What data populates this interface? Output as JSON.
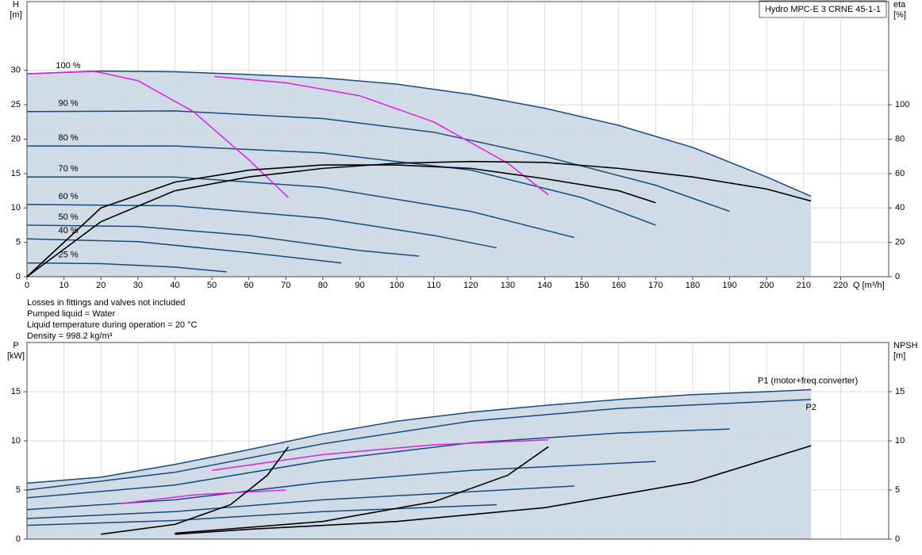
{
  "title": "Hydro MPC-E 3 CRNE 45-1-1",
  "notes": [
    "Losses in fittings and valves not included",
    "Pumped liquid = Water",
    "Liquid temperature during operation = 20 °C",
    "Density = 998.2 kg/m³"
  ],
  "chart_data": [
    {
      "type": "line",
      "ylabel": "H",
      "yunit": "[m]",
      "y2label": "eta",
      "y2unit": "[%]",
      "xlabel": "Q [m³/h]",
      "xlim": [
        0,
        233
      ],
      "xticks": [
        0,
        10,
        20,
        30,
        40,
        50,
        60,
        70,
        80,
        90,
        100,
        110,
        120,
        130,
        140,
        150,
        160,
        170,
        180,
        190,
        200,
        210,
        220
      ],
      "ylim": [
        0,
        40
      ],
      "yticks": [
        0,
        5,
        10,
        15,
        20,
        25,
        30
      ],
      "y2lim": [
        0,
        160
      ],
      "y2ticks": [
        0,
        20,
        40,
        60,
        80,
        100
      ],
      "grid": true,
      "xtick_labels": true,
      "series": [
        {
          "label": "100 %",
          "color": "#174a7c",
          "fill": "#cfdbe7",
          "x": [
            0,
            20,
            40,
            60,
            80,
            100,
            120,
            140,
            160,
            180,
            200,
            212
          ],
          "values": [
            29.5,
            29.9,
            29.8,
            29.4,
            28.9,
            28,
            26.5,
            24.5,
            22,
            18.8,
            14.5,
            11.7
          ]
        },
        {
          "label": "90 %",
          "color": "#174a7c",
          "x": [
            0,
            40,
            80,
            110,
            140,
            170,
            190
          ],
          "values": [
            24,
            24.1,
            23,
            21,
            17.5,
            13.3,
            9.5
          ]
        },
        {
          "label": "80 %",
          "color": "#174a7c",
          "x": [
            0,
            40,
            80,
            120,
            150,
            170
          ],
          "values": [
            19,
            19,
            18,
            15.5,
            11.5,
            7.5
          ]
        },
        {
          "label": "70 %",
          "color": "#174a7c",
          "x": [
            0,
            40,
            80,
            120,
            148
          ],
          "values": [
            14.5,
            14.5,
            13,
            9.5,
            5.7
          ]
        },
        {
          "label": "60 %",
          "color": "#174a7c",
          "x": [
            0,
            40,
            80,
            110,
            127
          ],
          "values": [
            10.5,
            10.3,
            8.5,
            6,
            4.2
          ]
        },
        {
          "label": "50 %",
          "color": "#174a7c",
          "x": [
            0,
            30,
            60,
            90,
            106
          ],
          "values": [
            7.5,
            7.3,
            6,
            3.8,
            3
          ]
        },
        {
          "label": "40 %",
          "color": "#174a7c",
          "x": [
            0,
            30,
            60,
            85
          ],
          "values": [
            5.5,
            5.1,
            3.5,
            2
          ]
        },
        {
          "label": "25 %",
          "color": "#174a7c",
          "x": [
            0,
            20,
            40,
            54
          ],
          "values": [
            2,
            1.9,
            1.4,
            0.7
          ]
        },
        {
          "color": "#e020e0",
          "x": [
            0,
            18,
            30,
            45,
            60,
            70.7
          ],
          "values": [
            29.5,
            29.9,
            28.5,
            24,
            17,
            11.5
          ]
        },
        {
          "color": "#e020e0",
          "x": [
            50.7,
            70,
            90,
            110,
            130,
            141
          ],
          "values": [
            29.1,
            28.2,
            26.3,
            22.5,
            16.5,
            11.9
          ]
        },
        {
          "color": "#000000",
          "axis": "y2",
          "x": [
            0,
            20,
            40,
            60,
            80,
            100,
            120,
            140,
            160,
            180,
            200,
            212
          ],
          "values": [
            0,
            32,
            50,
            58,
            63,
            66,
            67,
            66.5,
            63,
            58,
            51,
            44
          ]
        },
        {
          "color": "#000000",
          "axis": "y2",
          "x": [
            0,
            20,
            40,
            60,
            80,
            100,
            120,
            140,
            160,
            170
          ],
          "values": [
            0,
            40,
            55,
            62,
            65,
            65,
            63,
            57,
            50,
            43
          ]
        }
      ]
    },
    {
      "type": "line",
      "ylabel": "P",
      "yunit": "[kW]",
      "y2label": "NPSH",
      "y2unit": "[m]",
      "xlim": [
        0,
        233
      ],
      "xticks": [
        0,
        10,
        20,
        30,
        40,
        50,
        60,
        70,
        80,
        90,
        100,
        110,
        120,
        130,
        140,
        150,
        160,
        170,
        180,
        190,
        200,
        210,
        220
      ],
      "ylim": [
        0,
        20
      ],
      "yticks": [
        0,
        5,
        10,
        15
      ],
      "y2lim": [
        0,
        20
      ],
      "y2ticks": [
        0,
        5,
        10,
        15
      ],
      "grid": true,
      "xtick_labels": false,
      "series": [
        {
          "label": "P1 (motor+freq.converter)",
          "color": "#174a7c",
          "fill": "#cfdbe7",
          "x": [
            0,
            20,
            40,
            60,
            80,
            100,
            120,
            140,
            160,
            180,
            200,
            212
          ],
          "values": [
            5.7,
            6.3,
            7.6,
            9.1,
            10.7,
            12,
            12.9,
            13.6,
            14.2,
            14.7,
            15,
            15.2
          ]
        },
        {
          "label": "P2",
          "color": "#174a7c",
          "x": [
            0,
            40,
            80,
            120,
            160,
            212
          ],
          "values": [
            5,
            6.8,
            9.7,
            12,
            13.3,
            14.2
          ]
        },
        {
          "color": "#174a7c",
          "x": [
            0,
            40,
            80,
            120,
            160,
            190
          ],
          "values": [
            4.2,
            5.5,
            8,
            9.8,
            10.8,
            11.2
          ]
        },
        {
          "color": "#174a7c",
          "x": [
            0,
            40,
            80,
            120,
            170
          ],
          "values": [
            3,
            4,
            5.8,
            7,
            7.9
          ]
        },
        {
          "color": "#174a7c",
          "x": [
            0,
            40,
            80,
            148
          ],
          "values": [
            2.1,
            2.8,
            4,
            5.4
          ]
        },
        {
          "color": "#174a7c",
          "x": [
            0,
            40,
            80,
            127
          ],
          "values": [
            1.4,
            1.9,
            2.8,
            3.5
          ]
        },
        {
          "color": "#e020e0",
          "x": [
            50,
            80,
            110,
            141
          ],
          "values": [
            7,
            8.6,
            9.6,
            10.1
          ]
        },
        {
          "color": "#e020e0",
          "x": [
            25,
            45,
            70
          ],
          "values": [
            3.6,
            4.5,
            5
          ]
        },
        {
          "color": "#000000",
          "axis": "y2",
          "x": [
            40,
            60,
            100,
            140,
            180,
            212
          ],
          "values": [
            0.5,
            1,
            1.8,
            3.2,
            5.8,
            9.5
          ]
        },
        {
          "color": "#000000",
          "axis": "y2",
          "x": [
            20,
            40,
            55,
            65,
            70.7
          ],
          "values": [
            0.5,
            1.5,
            3.5,
            6.5,
            9.4
          ]
        },
        {
          "color": "#000000",
          "axis": "y2",
          "x": [
            40,
            80,
            110,
            130,
            141
          ],
          "values": [
            0.6,
            1.8,
            3.8,
            6.5,
            9.4
          ]
        }
      ]
    }
  ]
}
